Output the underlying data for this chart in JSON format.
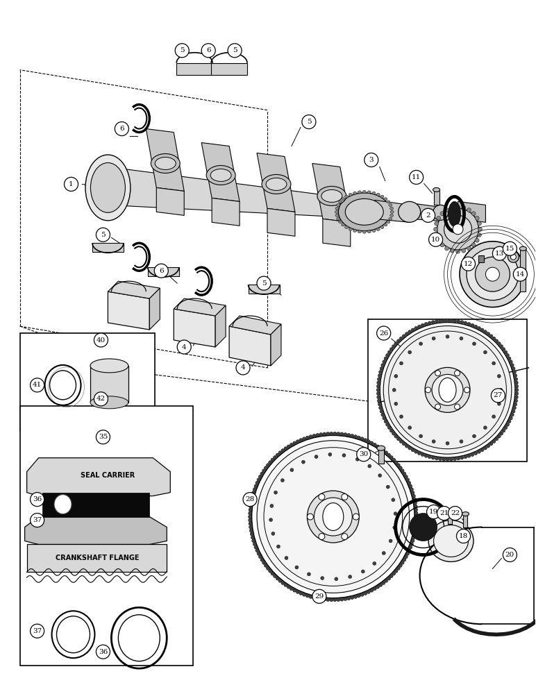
{
  "bg_color": "#ffffff",
  "fig_width": 7.72,
  "fig_height": 10.0,
  "dpi": 100,
  "lc": "#000000",
  "label_r": 0.013,
  "label_fs": 7.5
}
